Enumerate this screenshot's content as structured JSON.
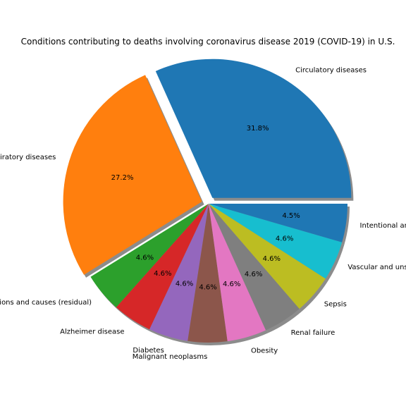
{
  "chart_data": {
    "type": "pie",
    "title": "Conditions contributing to deaths involving coronavirus disease 2019 (COVID-19) in U.S.",
    "categories": [
      "Circulatory diseases",
      "Respiratory diseases",
      "All other conditions and causes (residual)",
      "Alzheimer disease",
      "Diabetes",
      "Malignant neoplasms",
      "Obesity",
      "Renal failure",
      "Sepsis",
      "Vascular and unspecified dementia",
      "Intentional and unintentional injury, poisoning, and other adverse events"
    ],
    "values": [
      31.8,
      27.2,
      4.6,
      4.6,
      4.6,
      4.6,
      4.6,
      4.6,
      4.6,
      4.6,
      4.5
    ],
    "pct_labels": [
      "31.8%",
      "27.2%",
      "4.6%",
      "4.6%",
      "4.6%",
      "4.6%",
      "4.6%",
      "4.6%",
      "4.6%",
      "4.6%",
      "4.5%"
    ],
    "colors": [
      "#1f77b4",
      "#ff7f0e",
      "#2ca02c",
      "#d62728",
      "#9467bd",
      "#8c564b",
      "#e377c2",
      "#7f7f7f",
      "#bcbd22",
      "#17becf",
      "#1f77b4"
    ],
    "explode": [
      0.05,
      0.05,
      0,
      0,
      0,
      0,
      0,
      0,
      0,
      0,
      0
    ],
    "shadow": true,
    "legend": "none"
  }
}
